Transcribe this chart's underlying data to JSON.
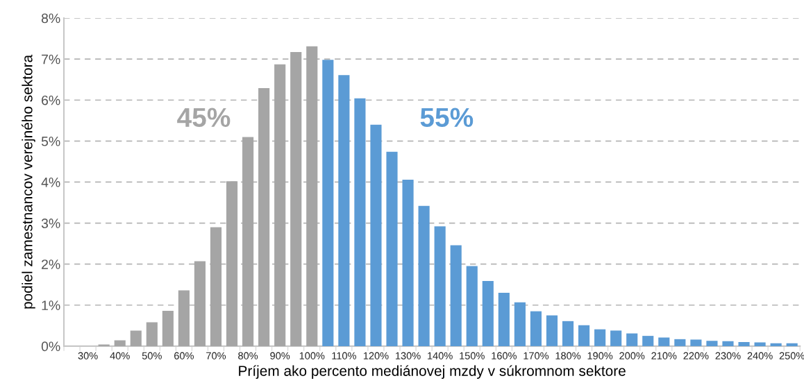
{
  "chart_data": {
    "type": "bar",
    "xlabel": "Príjem ako percento mediánovej mzdy v súkromnom sektore",
    "ylabel": "podiel zamestnancov verejného sektora",
    "categories": [
      null,
      "30%",
      null,
      "40%",
      null,
      "50%",
      null,
      "60%",
      null,
      "70%",
      null,
      "80%",
      null,
      "90%",
      null,
      "100%",
      null,
      "110%",
      null,
      "120%",
      null,
      "130%",
      null,
      "140%",
      null,
      "150%",
      null,
      "160%",
      null,
      "170%",
      null,
      "180%",
      null,
      "190%",
      null,
      "200%",
      null,
      "210%",
      null,
      "220%",
      null,
      "230%",
      null,
      "240%",
      null,
      "250%"
    ],
    "values": [
      0,
      0,
      0.04,
      0.14,
      0.38,
      0.58,
      0.86,
      1.36,
      2.07,
      2.9,
      4.02,
      5.1,
      6.29,
      6.87,
      7.17,
      7.31,
      6.98,
      6.61,
      6.04,
      5.4,
      4.74,
      4.06,
      3.42,
      2.92,
      2.46,
      1.95,
      1.59,
      1.3,
      1.07,
      0.85,
      0.75,
      0.61,
      0.51,
      0.41,
      0.38,
      0.31,
      0.25,
      0.21,
      0.17,
      0.16,
      0.13,
      0.12,
      0.1,
      0.09,
      0.07,
      0.07
    ],
    "colors": [
      "#a5a5a5",
      "#a5a5a5",
      "#a5a5a5",
      "#a5a5a5",
      "#a5a5a5",
      "#a5a5a5",
      "#a5a5a5",
      "#a5a5a5",
      "#a5a5a5",
      "#a5a5a5",
      "#a5a5a5",
      "#a5a5a5",
      "#a5a5a5",
      "#a5a5a5",
      "#a5a5a5",
      "#a5a5a5",
      "#5b9bd5",
      "#5b9bd5",
      "#5b9bd5",
      "#5b9bd5",
      "#5b9bd5",
      "#5b9bd5",
      "#5b9bd5",
      "#5b9bd5",
      "#5b9bd5",
      "#5b9bd5",
      "#5b9bd5",
      "#5b9bd5",
      "#5b9bd5",
      "#5b9bd5",
      "#5b9bd5",
      "#5b9bd5",
      "#5b9bd5",
      "#5b9bd5",
      "#5b9bd5",
      "#5b9bd5",
      "#5b9bd5",
      "#5b9bd5",
      "#5b9bd5",
      "#5b9bd5",
      "#5b9bd5",
      "#5b9bd5",
      "#5b9bd5",
      "#5b9bd5",
      "#5b9bd5",
      "#5b9bd5"
    ],
    "ylim": [
      0,
      8
    ],
    "yticks": [
      {
        "value": 0,
        "label": "0%"
      },
      {
        "value": 1,
        "label": "1%"
      },
      {
        "value": 2,
        "label": "2%"
      },
      {
        "value": 3,
        "label": "3%"
      },
      {
        "value": 4,
        "label": "4%"
      },
      {
        "value": 5,
        "label": "5%"
      },
      {
        "value": 6,
        "label": "6%"
      },
      {
        "value": 7,
        "label": "7%"
      },
      {
        "value": 8,
        "label": "8%"
      }
    ],
    "grid": "y",
    "annotations": [
      "45%",
      "55%"
    ]
  }
}
